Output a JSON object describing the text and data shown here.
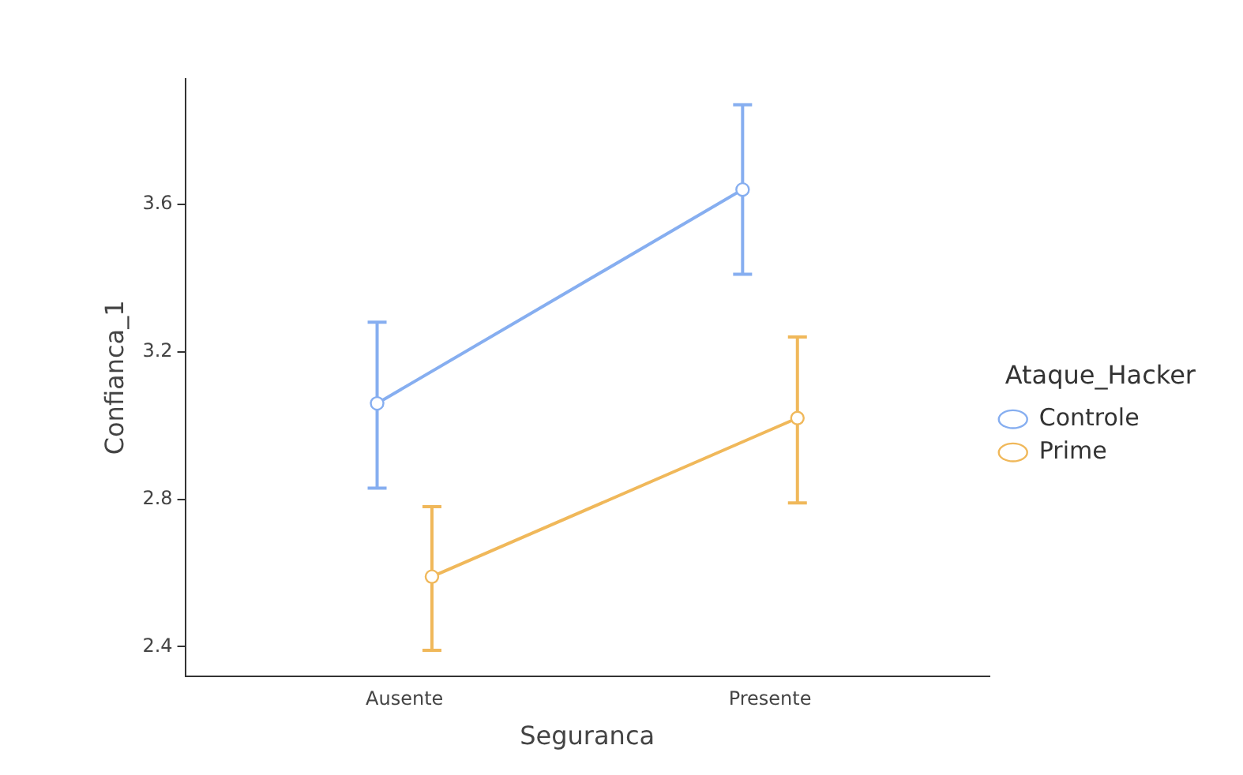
{
  "chart_data": {
    "type": "line",
    "xlabel": "Seguranca",
    "ylabel": "Confianca_1",
    "legend_title": "Ataque_Hacker",
    "categories": [
      "Ausente",
      "Presente"
    ],
    "series": [
      {
        "name": "Controle",
        "color": "#86aef0",
        "values": [
          3.06,
          3.64
        ],
        "errors": [
          [
            2.83,
            3.28
          ],
          [
            3.41,
            3.87
          ]
        ]
      },
      {
        "name": "Prime",
        "color": "#f0b85a",
        "values": [
          2.59,
          3.02
        ],
        "errors": [
          [
            2.39,
            2.78
          ],
          [
            2.79,
            3.24
          ]
        ]
      }
    ],
    "ylim": [
      2.32,
      3.94
    ],
    "yticks": [
      2.4,
      2.8,
      3.2,
      3.6
    ],
    "grid": false,
    "legend": "right",
    "marker": "circle",
    "line_style": "solid"
  }
}
